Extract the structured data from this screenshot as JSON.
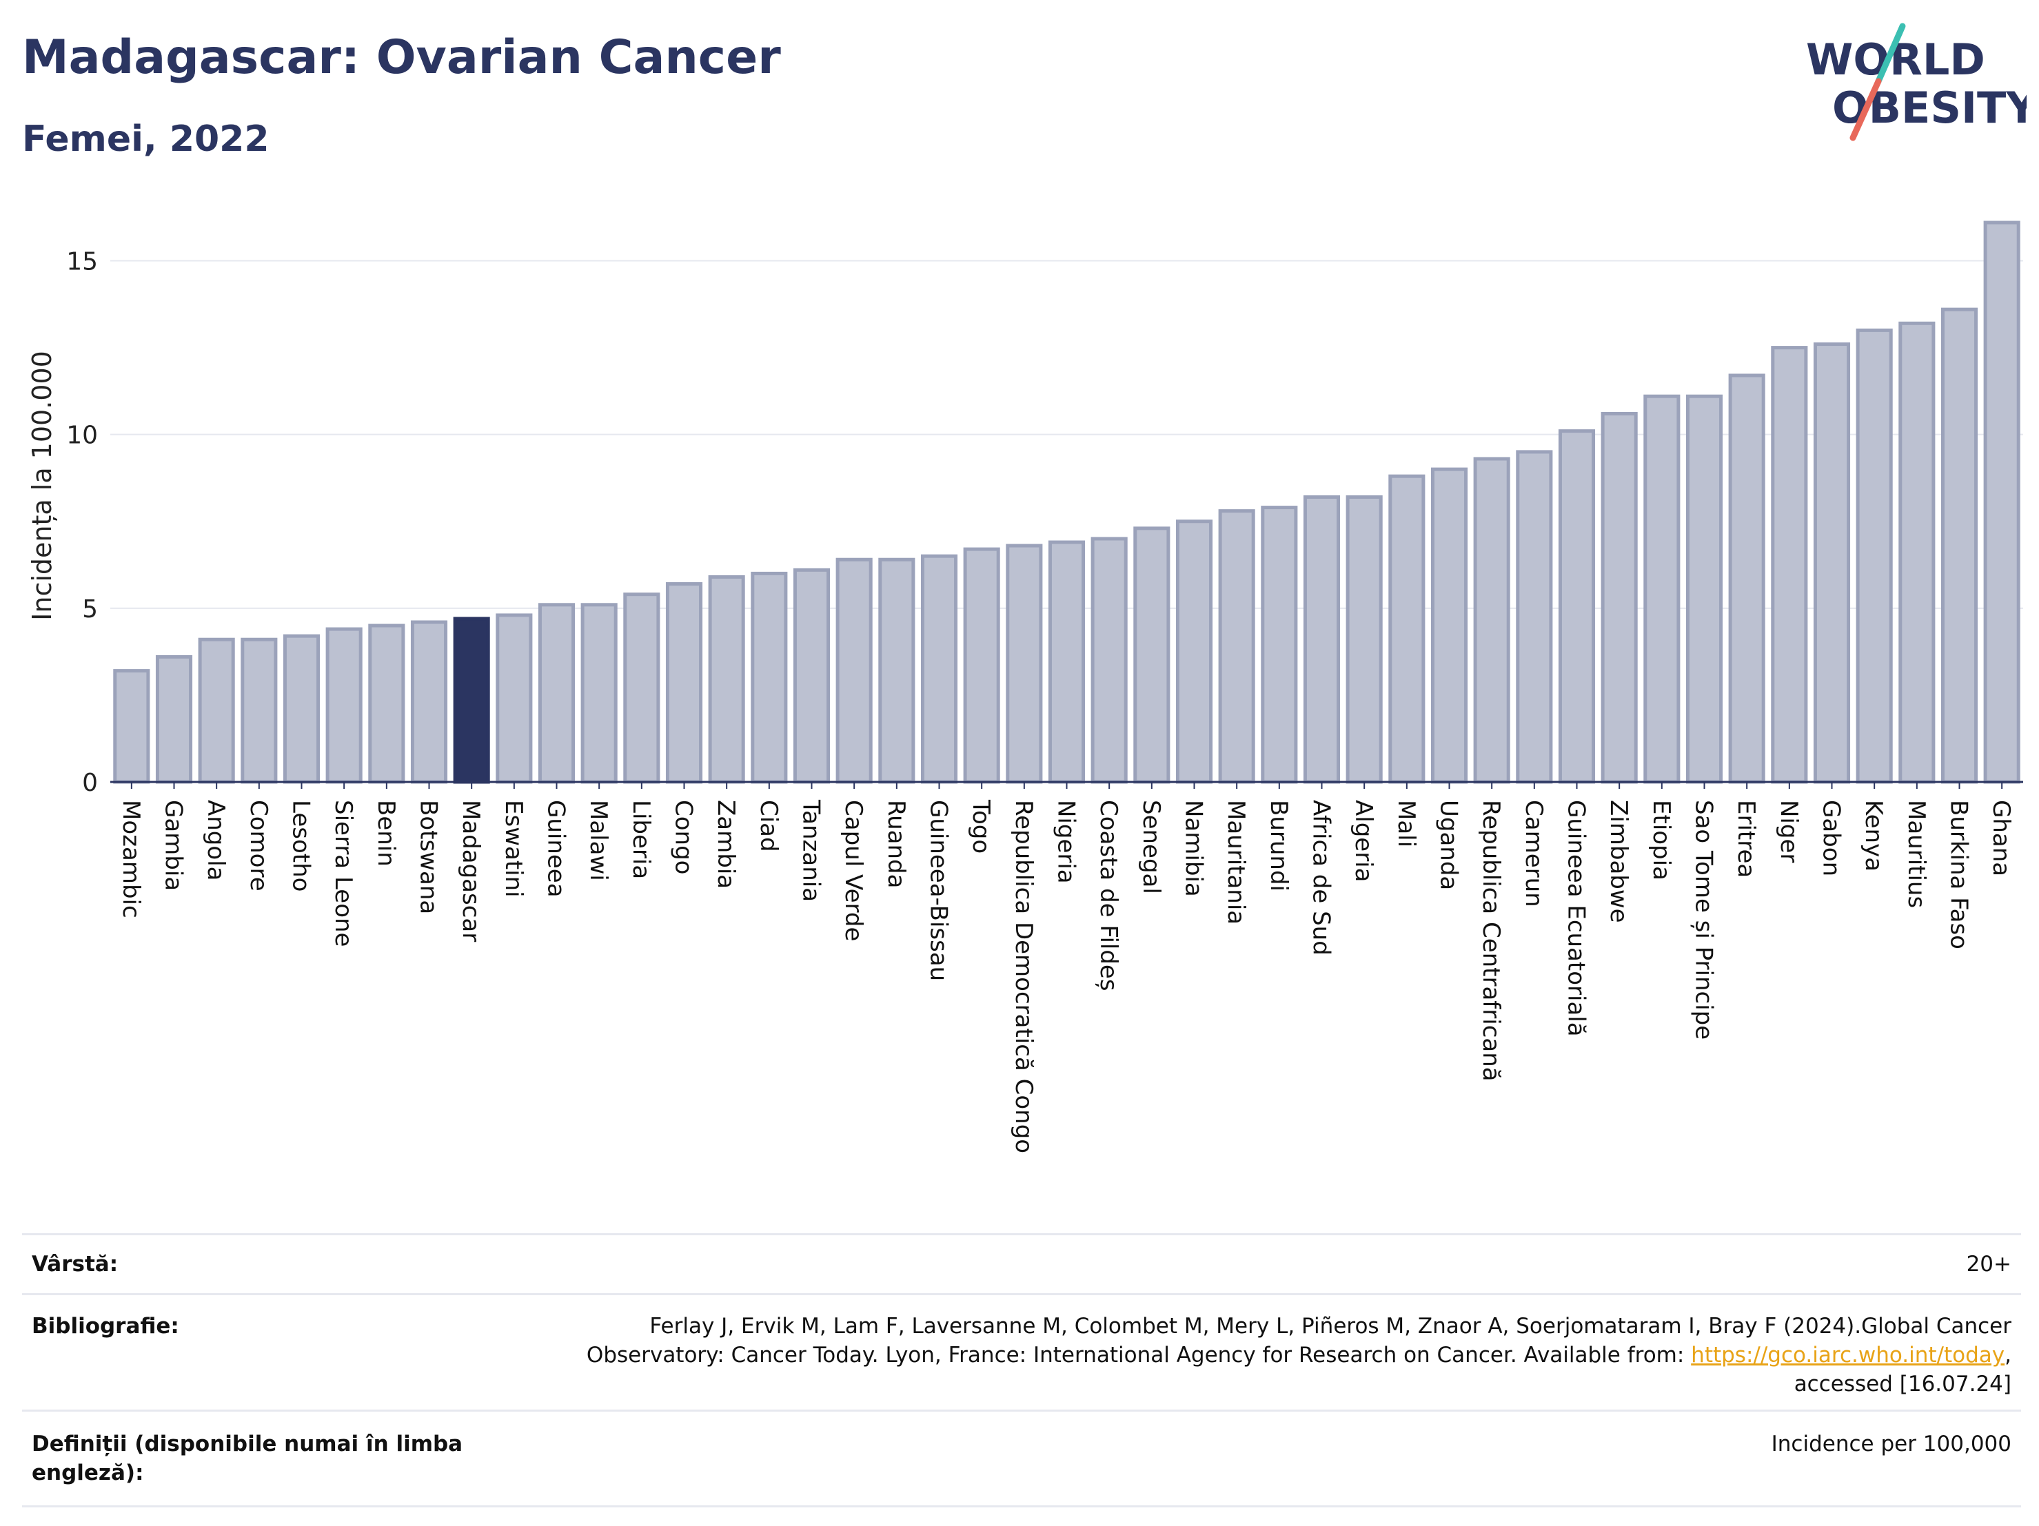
{
  "header": {
    "title": "Madagascar: Ovarian Cancer",
    "subtitle": "Femei, 2022"
  },
  "logo": {
    "line1": "WORLD",
    "line2": "OBESITY",
    "text_color": "#2b3561",
    "accent_teal": "#3bbfb2",
    "accent_coral": "#e8685a"
  },
  "chart_data": {
    "type": "bar",
    "title": "Madagascar: Ovarian Cancer",
    "subtitle": "Femei, 2022",
    "xlabel": "",
    "ylabel": "Incidența la 100.000",
    "ylim": [
      0,
      16.2
    ],
    "yticks": [
      0,
      5,
      10,
      15
    ],
    "grid": true,
    "legend": "none",
    "highlight": "Madagascar",
    "bar_color": "#bcc1d1",
    "bar_edge_color": "#9ba2ba",
    "highlight_color": "#2b3561",
    "categories": [
      "Mozambic",
      "Gambia",
      "Angola",
      "Comore",
      "Lesotho",
      "Sierra Leone",
      "Benin",
      "Botswana",
      "Madagascar",
      "Eswatini",
      "Guineea",
      "Malawi",
      "Liberia",
      "Congo",
      "Zambia",
      "Ciad",
      "Tanzania",
      "Capul Verde",
      "Ruanda",
      "Guineea-Bissau",
      "Togo",
      "Republica Democratică Congo",
      "Nigeria",
      "Coasta de Fildeș",
      "Senegal",
      "Namibia",
      "Mauritania",
      "Burundi",
      "Africa de Sud",
      "Algeria",
      "Mali",
      "Uganda",
      "Republica Centrafricană",
      "Camerun",
      "Guineea Ecuatorială",
      "Zimbabwe",
      "Etiopia",
      "Sao Tome și Principe",
      "Eritrea",
      "Niger",
      "Gabon",
      "Kenya",
      "Mauritius",
      "Burkina Faso",
      "Ghana"
    ],
    "values": [
      3.2,
      3.6,
      4.1,
      4.1,
      4.2,
      4.4,
      4.5,
      4.6,
      4.7,
      4.8,
      5.1,
      5.1,
      5.4,
      5.7,
      5.9,
      6.0,
      6.1,
      6.4,
      6.4,
      6.5,
      6.7,
      6.8,
      6.9,
      7.0,
      7.3,
      7.5,
      7.8,
      7.9,
      8.2,
      8.2,
      8.8,
      9.0,
      9.3,
      9.5,
      10.1,
      10.6,
      11.1,
      11.1,
      11.7,
      12.5,
      12.6,
      13.0,
      13.2,
      13.6,
      16.1
    ]
  },
  "footer": {
    "age_label": "Vârstă:",
    "age_value": "20+",
    "bib_label": "Bibliografie:",
    "bib_text_1": "Ferlay J, Ervik M, Lam F, Laversanne M, Colombet M, Mery L, Piñeros M, Znaor A, Soerjomataram I, Bray F (2024).Global Cancer Observatory: Cancer Today. Lyon, France: International Agency for Research on Cancer. Available from: ",
    "bib_link": "https://gco.iarc.who.int/today",
    "bib_text_2": ", accessed [16.07.24]",
    "def_label": "Definiții (disponibile numai în limba engleză):",
    "def_value": "Incidence per 100,000"
  }
}
